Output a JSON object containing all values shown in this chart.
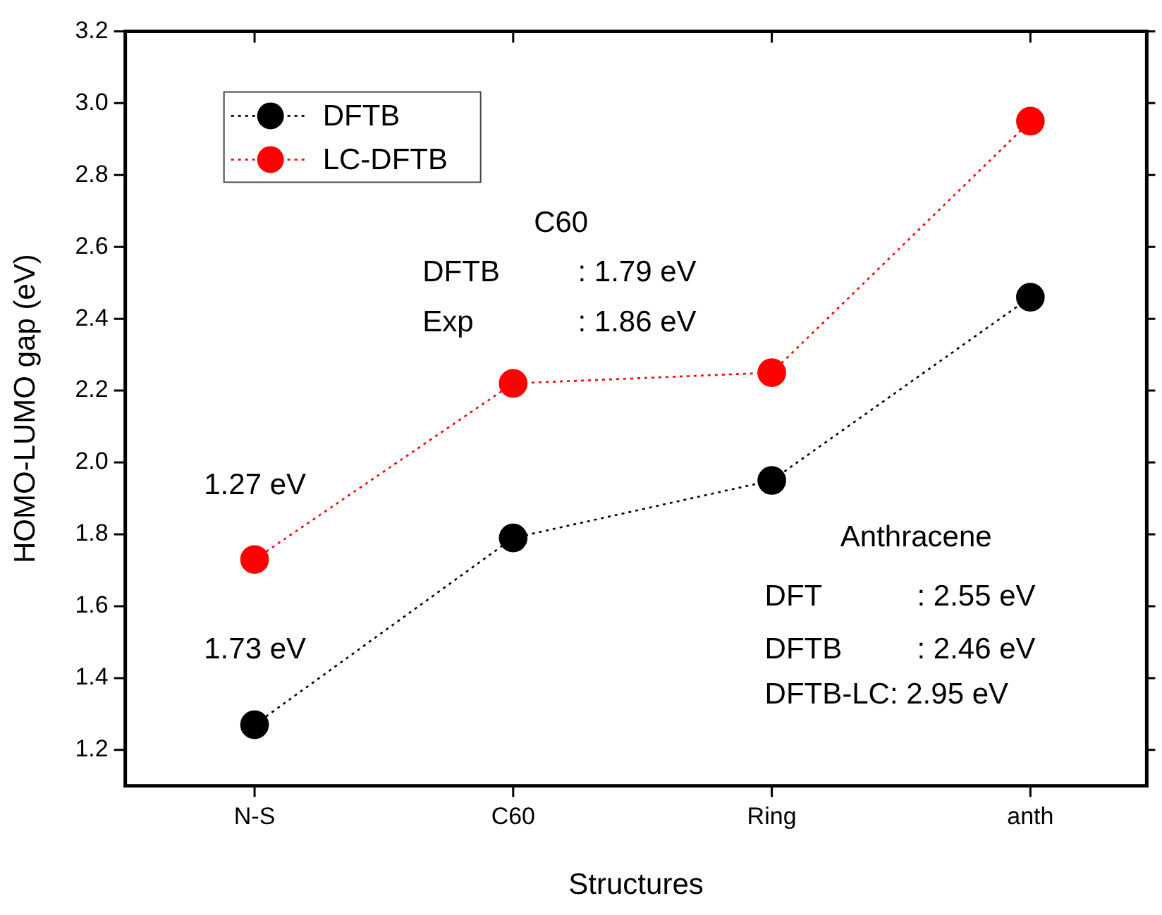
{
  "chart_data": {
    "type": "line",
    "xlabel": "Structures",
    "ylabel": "HOMO-LUMO gap (eV)",
    "categories": [
      "N-S",
      "C60",
      "Ring",
      "anth"
    ],
    "series": [
      {
        "name": "DFTB",
        "color": "#000000",
        "values": [
          1.27,
          1.79,
          1.95,
          2.46
        ]
      },
      {
        "name": "LC-DFTB",
        "color": "#ff0000",
        "values": [
          1.73,
          2.22,
          2.25,
          2.95
        ]
      }
    ],
    "ylim": [
      1.1,
      3.2
    ],
    "yticks": [
      1.2,
      1.4,
      1.6,
      1.8,
      {
        "value": 2,
        "label": "2.0"
      },
      2.2,
      2.4,
      2.6,
      2.8,
      {
        "value": 3,
        "label": "3.0"
      },
      3.2
    ],
    "grid": false,
    "legend": "top left",
    "marker": "circle",
    "line_style": "dotted",
    "annotations": [
      "1.27 eV",
      "1.73 eV",
      "C60",
      "DFTB",
      ": 1.79 eV",
      "Exp",
      ": 1.86 eV",
      "Anthracene",
      "DFT",
      ": 2.55 eV",
      "DFTB",
      ": 2.46 eV",
      "DFTB-LC: 2.95 eV"
    ]
  }
}
